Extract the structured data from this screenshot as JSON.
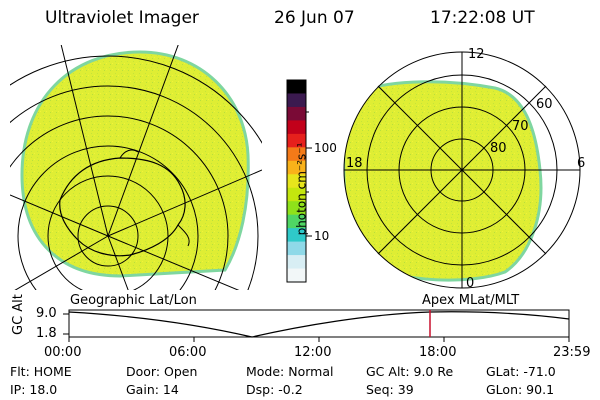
{
  "header": {
    "title": "Ultraviolet Imager",
    "date": "26 Jun 07",
    "time": "17:22:08 UT"
  },
  "colorbar": {
    "unit_label": "photon cm⁻²s⁻¹",
    "ticks": [
      "100",
      "10"
    ],
    "colors": [
      "#000000",
      "#3b1a4f",
      "#7a0a36",
      "#c2001a",
      "#e6201c",
      "#f47a18",
      "#f9b21a",
      "#e7e51c",
      "#c4e60e",
      "#8fe21a",
      "#4fd664",
      "#2fc9c9",
      "#8fd9e8",
      "#d8eef4",
      "#f2f7f8"
    ]
  },
  "geographic_panel": {
    "label": "Geographic Lat/Lon",
    "fill_color": "#dfee34",
    "edge_color": "#7fd6a0"
  },
  "polar_panel": {
    "label": "Apex MLat/MLT",
    "hour_labels": [
      "12",
      "18",
      "6",
      "0"
    ],
    "lat_labels": [
      "60",
      "70",
      "80"
    ],
    "fill_color": "#dfee34",
    "edge_color": "#7fd6a0"
  },
  "timeline": {
    "ylabel": "GC Alt",
    "y_ticks": [
      "9.0",
      "1.8"
    ],
    "x_ticks": [
      "00:00",
      "06:00",
      "12:00",
      "18:00",
      "23:59"
    ],
    "marker_color": "#c8102e",
    "marker_time_fraction": 0.7237
  },
  "info": {
    "flt": "Flt:  HOME",
    "ip": "IP:  18.0",
    "door": "Door:  Open",
    "gain": "Gain:  14",
    "mode": "Mode:  Normal",
    "dsp": "Dsp:     -0.2",
    "gcalt": "GC Alt:  9.0 Re",
    "seq": "Seq:  39",
    "glat": "GLat:  -71.0",
    "glon": "GLon:   90.1"
  }
}
